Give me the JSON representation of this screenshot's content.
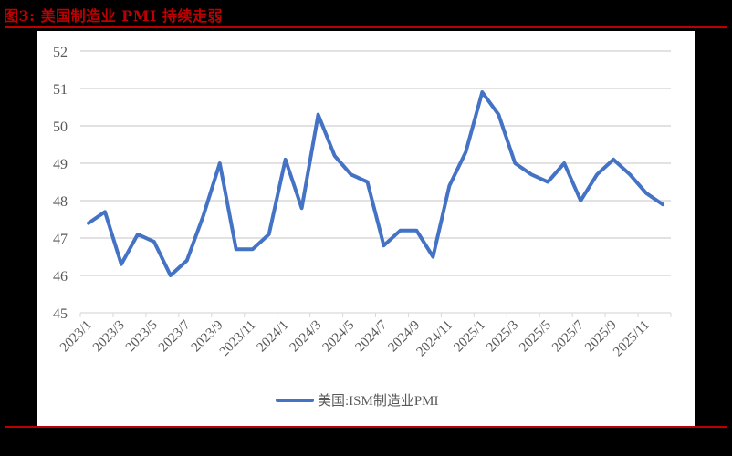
{
  "figure": {
    "title": "图3:   美国制造业 PMI 持续走弱"
  },
  "legend": {
    "label": "美国:ISM制造业PMI",
    "color": "#4472c4"
  },
  "colors": {
    "line": "#4472c4",
    "grid": "#d9d9d9",
    "axis_text": "#595959",
    "title": "#c00000",
    "background": "#000000",
    "panel": "#ffffff"
  },
  "chart_data": {
    "type": "line",
    "title": "美国制造业 PMI 持续走弱",
    "xlabel": "",
    "ylabel": "",
    "ylim": [
      45,
      52
    ],
    "yticks": [
      45,
      46,
      47,
      48,
      49,
      50,
      51,
      52
    ],
    "grid": true,
    "legend_position": "bottom",
    "x": [
      "2023/1",
      "2023/2",
      "2023/3",
      "2023/4",
      "2023/5",
      "2023/6",
      "2023/7",
      "2023/8",
      "2023/9",
      "2023/10",
      "2023/11",
      "2023/12",
      "2024/1",
      "2024/2",
      "2024/3",
      "2024/4",
      "2024/5",
      "2024/6",
      "2024/7",
      "2024/8",
      "2024/9",
      "2024/10",
      "2024/11",
      "2024/12",
      "2025/1",
      "2025/2",
      "2025/3",
      "2025/4",
      "2025/5",
      "2025/6",
      "2025/7",
      "2025/8",
      "2025/9",
      "2025/10",
      "2025/11",
      "2025/12"
    ],
    "xtick_labels": [
      "2023/1",
      "2023/3",
      "2023/5",
      "2023/7",
      "2023/9",
      "2023/11",
      "2024/1",
      "2024/3",
      "2024/5",
      "2024/7",
      "2024/9",
      "2024/11",
      "2025/1",
      "2025/3",
      "2025/5",
      "2025/7",
      "2025/9",
      "2025/11"
    ],
    "series": [
      {
        "name": "美国:ISM制造业PMI",
        "values": [
          47.4,
          47.7,
          46.3,
          47.1,
          46.9,
          46.0,
          46.4,
          47.6,
          49.0,
          46.7,
          46.7,
          47.1,
          49.1,
          47.8,
          50.3,
          49.2,
          48.7,
          48.5,
          46.8,
          47.2,
          47.2,
          46.5,
          48.4,
          49.3,
          50.9,
          50.3,
          49.0,
          48.7,
          48.5,
          49.0,
          48.0,
          48.7,
          49.1,
          48.7,
          48.2,
          47.9
        ]
      }
    ]
  }
}
